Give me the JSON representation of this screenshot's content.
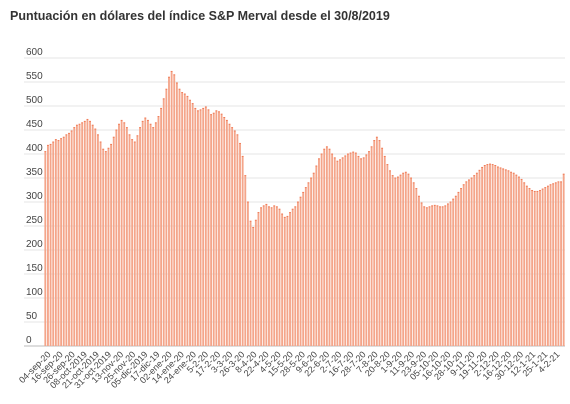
{
  "chart_data": {
    "type": "bar",
    "title": "Puntuación en dólares del índice S&P Merval desde el 30/8/2019",
    "xlabel": "",
    "ylabel": "",
    "ylim": [
      0,
      600
    ],
    "yticks": [
      0,
      50,
      100,
      150,
      200,
      250,
      300,
      350,
      400,
      450,
      500,
      550,
      600
    ],
    "grid": true,
    "bar_color": "#f4a58a",
    "bar_edge_color": "#f07a55",
    "tick_labels": [
      "04-sep-20",
      "16-sep-20",
      "26-sep-20",
      "08-oct-2019",
      "21-oct-2019",
      "31-oct-2019",
      "13-nov-20",
      "25-nov-20",
      "05-dic-2019",
      "17-dic-19",
      "02-ene-20",
      "14-ene-20",
      "24-ene-20",
      "5-2-20",
      "17-2-20",
      "3-3-20",
      "26-3-20",
      "8-4-20",
      "22-4-20",
      "4-5-20",
      "15-5-20",
      "28-5-20",
      "9-6-20",
      "22-6-20",
      "2-7-20",
      "16-7-20",
      "28-7-20",
      "7-8-20",
      "20-8-20",
      "1-9-20",
      "11-9-20",
      "23-9-20",
      "05-10-20",
      "16-10-20",
      "28-10-20",
      "9-11-20",
      "19-11-20",
      "2-12-20",
      "16-12-20",
      "30-12-20",
      "12-1-21",
      "25-1-21",
      "4-2-21"
    ],
    "values": [
      405,
      418,
      420,
      425,
      430,
      428,
      432,
      435,
      440,
      443,
      448,
      455,
      460,
      462,
      465,
      468,
      472,
      468,
      460,
      452,
      440,
      425,
      410,
      405,
      412,
      420,
      435,
      450,
      462,
      470,
      465,
      455,
      440,
      430,
      425,
      438,
      455,
      468,
      475,
      470,
      462,
      455,
      465,
      478,
      495,
      515,
      535,
      560,
      572,
      565,
      548,
      535,
      528,
      525,
      520,
      512,
      505,
      495,
      490,
      492,
      495,
      498,
      492,
      482,
      485,
      490,
      488,
      483,
      476,
      470,
      462,
      455,
      448,
      440,
      422,
      395,
      355,
      300,
      260,
      247,
      262,
      278,
      288,
      292,
      295,
      290,
      288,
      292,
      290,
      285,
      275,
      268,
      270,
      278,
      285,
      290,
      300,
      310,
      320,
      330,
      340,
      350,
      360,
      375,
      390,
      400,
      410,
      415,
      410,
      400,
      392,
      385,
      388,
      392,
      396,
      400,
      402,
      404,
      402,
      395,
      390,
      392,
      398,
      405,
      415,
      428,
      435,
      428,
      412,
      395,
      378,
      365,
      355,
      350,
      352,
      356,
      360,
      362,
      358,
      350,
      340,
      328,
      312,
      298,
      290,
      288,
      290,
      292,
      293,
      292,
      290,
      290,
      292,
      296,
      300,
      306,
      312,
      320,
      328,
      336,
      342,
      346,
      350,
      355,
      360,
      366,
      372,
      376,
      378,
      379,
      378,
      376,
      373,
      371,
      369,
      367,
      365,
      362,
      360,
      356,
      352,
      347,
      340,
      333,
      328,
      324,
      322,
      322,
      324,
      327,
      330,
      333,
      336,
      338,
      340,
      342,
      342,
      358
    ]
  }
}
